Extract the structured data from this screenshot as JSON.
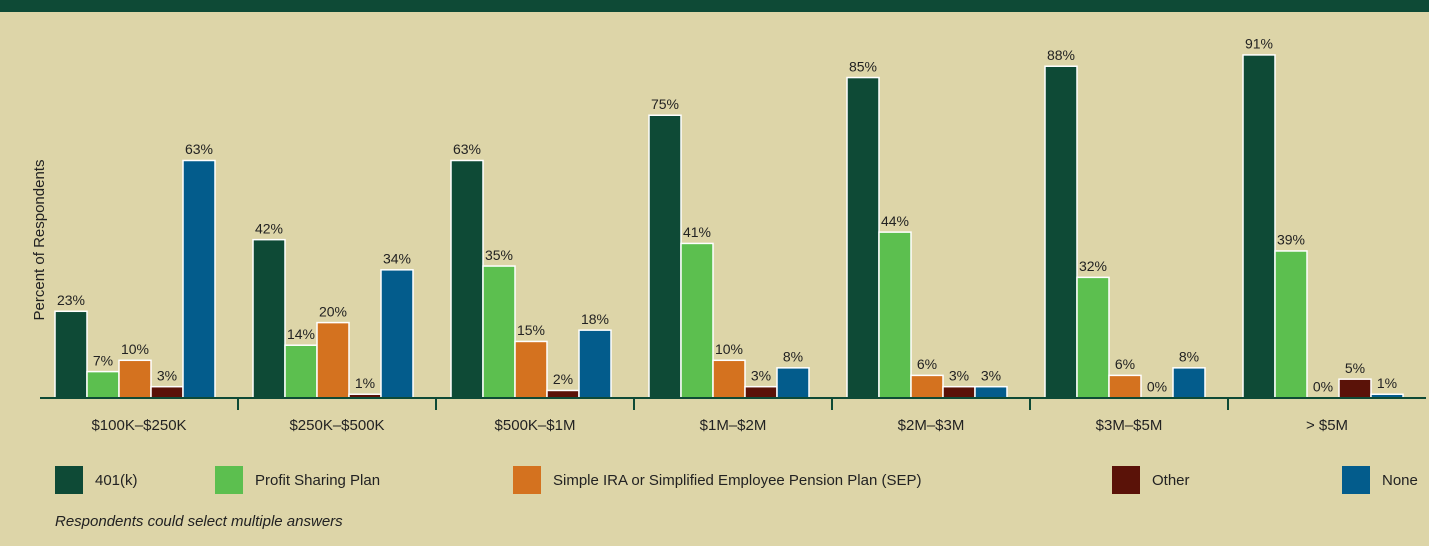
{
  "chart_data": {
    "type": "bar",
    "y_axis_label": "Percent of Respondents",
    "categories": [
      "$100K–$250K",
      "$250K–$500K",
      "$500K–$1M",
      "$1M–$2M",
      "$2M–$3M",
      "$3M–$5M",
      "> $5M"
    ],
    "series": [
      {
        "name": "401(k)",
        "color": "#0e4a36",
        "values": [
          23,
          42,
          63,
          75,
          85,
          88,
          91
        ],
        "value_labels": [
          "23%",
          "42%",
          "63%",
          "75%",
          "85%",
          "88%",
          "91%"
        ]
      },
      {
        "name": "Profit Sharing Plan",
        "color": "#5cbf4f",
        "values": [
          7,
          14,
          35,
          41,
          44,
          32,
          39
        ],
        "value_labels": [
          "7%",
          "14%",
          "35%",
          "41%",
          "44%",
          "32%",
          "39%"
        ]
      },
      {
        "name": "Simple IRA or Simplified Employee Pension Plan (SEP)",
        "color": "#d4721f",
        "values": [
          10,
          20,
          15,
          10,
          6,
          6,
          0
        ],
        "value_labels": [
          "10%",
          "20%",
          "15%",
          "10%",
          "6%",
          "6%",
          "0%"
        ]
      },
      {
        "name": "Other",
        "color": "#5a1208",
        "values": [
          3,
          1,
          2,
          3,
          3,
          0,
          5
        ],
        "value_labels": [
          "3%",
          "1%",
          "2%",
          "3%",
          "3%",
          "0%",
          "5%"
        ]
      },
      {
        "name": "None",
        "color": "#035c8c",
        "values": [
          63,
          34,
          18,
          8,
          3,
          8,
          1
        ],
        "value_labels": [
          "63%",
          "34%",
          "18%",
          "8%",
          "3%",
          "8%",
          "1%"
        ]
      }
    ],
    "ylim": [
      0,
      100
    ],
    "note": "Respondents could select multiple answers"
  }
}
